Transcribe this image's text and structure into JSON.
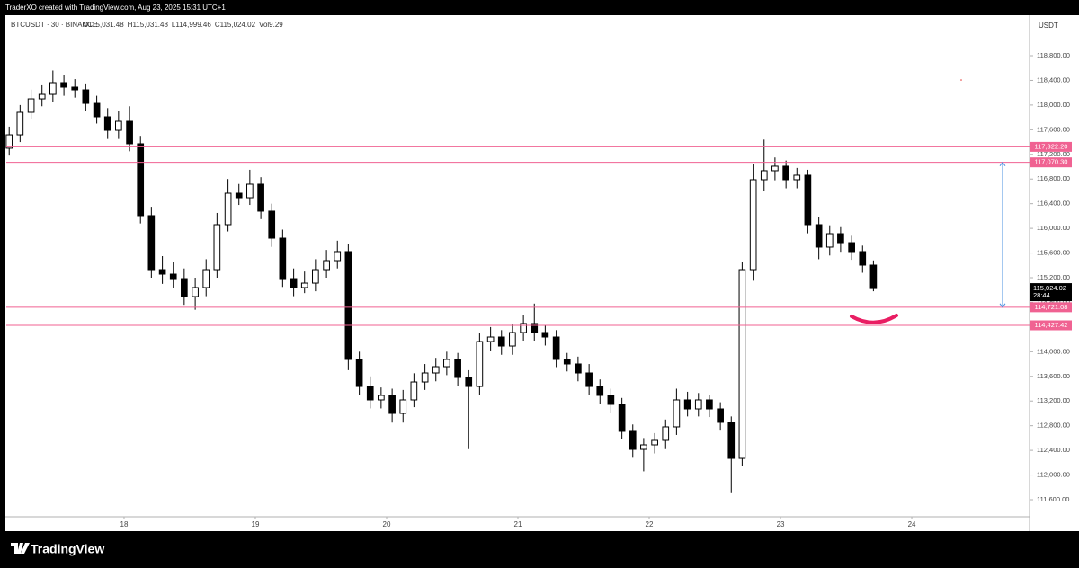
{
  "header": {
    "credit": "TraderXO created with TradingView.com, Aug 23, 2025 15:31 UTC+1"
  },
  "footer": {
    "brand": "TradingView"
  },
  "chart_data": {
    "type": "candlestick",
    "symbol": "BTCUSDT · 30 · BINANCE",
    "ohlc_legend": [
      "O115,031.48",
      "H115,031.48",
      "L114,999.46",
      "C115,024.02",
      "Vol9.29"
    ],
    "y_axis_label": "USDT",
    "up_color": "#ffffff",
    "down_color": "#000000",
    "x": [
      17.125,
      17.208,
      17.292,
      17.375,
      17.458,
      17.542,
      17.625,
      17.708,
      17.792,
      17.875,
      17.958,
      18.042,
      18.125,
      18.208,
      18.292,
      18.375,
      18.458,
      18.542,
      18.625,
      18.708,
      18.792,
      18.875,
      18.958,
      19.042,
      19.125,
      19.208,
      19.292,
      19.375,
      19.458,
      19.542,
      19.625,
      19.708,
      19.792,
      19.875,
      19.958,
      20.042,
      20.125,
      20.208,
      20.292,
      20.375,
      20.458,
      20.542,
      20.625,
      20.708,
      20.792,
      20.875,
      20.958,
      21.042,
      21.125,
      21.208,
      21.292,
      21.375,
      21.458,
      21.542,
      21.625,
      21.708,
      21.792,
      21.875,
      21.958,
      22.042,
      22.125,
      22.208,
      22.292,
      22.375,
      22.458,
      22.542,
      22.625,
      22.708,
      22.792,
      22.875,
      22.958,
      23.042,
      23.125,
      23.208,
      23.292,
      23.375,
      23.458,
      23.542,
      23.625,
      23.708
    ],
    "open": [
      117300,
      117517,
      117882,
      118100,
      118173,
      118363,
      118290,
      118246,
      118027,
      117809,
      117590,
      117736,
      117372,
      116206,
      115331,
      115258,
      115185,
      114894,
      115040,
      115331,
      116060,
      116570,
      116497,
      116716,
      116279,
      115841,
      115185,
      115040,
      115112,
      115331,
      115477,
      115623,
      113874,
      113436,
      113218,
      113291,
      112999,
      113218,
      113509,
      113655,
      113757,
      113874,
      113582,
      113436,
      114165,
      114238,
      114092,
      114311,
      114457,
      114311,
      114238,
      113874,
      113801,
      113655,
      113436,
      113291,
      113145,
      112708,
      112416,
      112489,
      112562,
      112781,
      113218,
      113072,
      113218,
      113072,
      112854,
      112270,
      115331,
      116789,
      116935,
      117008,
      116789,
      116862,
      116060,
      115696,
      115914,
      115768,
      115623,
      115404
    ],
    "high": [
      117650,
      118000,
      118250,
      118320,
      118560,
      118480,
      118420,
      118350,
      118150,
      117950,
      117900,
      117980,
      117500,
      116350,
      115550,
      115450,
      115350,
      115200,
      115500,
      116250,
      116800,
      116720,
      116950,
      116830,
      116400,
      115980,
      115350,
      115300,
      115500,
      115650,
      115800,
      115750,
      114000,
      113600,
      113420,
      113400,
      113380,
      113650,
      113800,
      113900,
      114000,
      113980,
      113700,
      114300,
      114400,
      114350,
      114450,
      114600,
      114780,
      114420,
      114350,
      113980,
      113920,
      113800,
      113550,
      113400,
      113250,
      112820,
      112600,
      112680,
      112900,
      113400,
      113350,
      113330,
      113300,
      113180,
      112950,
      115450,
      117050,
      117440,
      117150,
      117100,
      116980,
      116950,
      116180,
      116050,
      116020,
      115880,
      115720,
      115480
    ],
    "low": [
      117180,
      117400,
      117780,
      117980,
      118050,
      118150,
      118120,
      117900,
      117700,
      117450,
      117450,
      117250,
      116080,
      115200,
      115100,
      115040,
      114760,
      114680,
      114900,
      115200,
      115950,
      116380,
      116380,
      116150,
      115700,
      115050,
      114900,
      114950,
      114980,
      115200,
      115350,
      113700,
      113300,
      113080,
      113080,
      112850,
      112850,
      113100,
      113380,
      113520,
      113620,
      113450,
      112420,
      113300,
      114020,
      113950,
      113950,
      114180,
      114180,
      114100,
      113750,
      113680,
      113520,
      113300,
      113150,
      113000,
      112580,
      112280,
      112060,
      112350,
      112420,
      112650,
      112950,
      112950,
      112940,
      112720,
      111720,
      112150,
      115150,
      116600,
      116780,
      116650,
      116650,
      115920,
      115500,
      115560,
      115620,
      115490,
      115280,
      114980
    ],
    "close": [
      117517,
      117882,
      118100,
      118173,
      118363,
      118290,
      118246,
      118027,
      117809,
      117590,
      117736,
      117372,
      116206,
      115331,
      115258,
      115185,
      114894,
      115040,
      115331,
      116060,
      116570,
      116497,
      116716,
      116279,
      115841,
      115185,
      115040,
      115112,
      115331,
      115477,
      115623,
      113874,
      113436,
      113218,
      113291,
      112999,
      113218,
      113509,
      113655,
      113757,
      113874,
      113582,
      113436,
      114165,
      114238,
      114092,
      114311,
      114457,
      114311,
      114238,
      113874,
      113801,
      113655,
      113436,
      113291,
      113145,
      112708,
      112416,
      112489,
      112562,
      112781,
      113218,
      113072,
      113218,
      113072,
      112854,
      112270,
      115331,
      116789,
      116935,
      117008,
      116789,
      116862,
      116060,
      115696,
      115914,
      115768,
      115623,
      115404,
      115024.02
    ],
    "xlim": [
      17.103,
      24.897
    ],
    "xticks": [
      18,
      19,
      20,
      21,
      22,
      23,
      24
    ],
    "ylim": [
      111323,
      119456
    ],
    "yticks": [
      {
        "value": 111600,
        "label": "111,600.00"
      },
      {
        "value": 112000,
        "label": "112,000.00"
      },
      {
        "value": 112400,
        "label": "112,400.00"
      },
      {
        "value": 112800,
        "label": "112,800.00"
      },
      {
        "value": 113200,
        "label": "113,200.00"
      },
      {
        "value": 113600,
        "label": "113,600.00"
      },
      {
        "value": 114000,
        "label": "114,000.00"
      },
      {
        "value": 114400,
        "label": "114,400.00"
      },
      {
        "value": 114800,
        "label": "114,800.00"
      },
      {
        "value": 115200,
        "label": "115,200.00"
      },
      {
        "value": 115600,
        "label": "115,600.00"
      },
      {
        "value": 116000,
        "label": "116,000.00"
      },
      {
        "value": 116400,
        "label": "116,400.00"
      },
      {
        "value": 116800,
        "label": "116,800.00"
      },
      {
        "value": 117200,
        "label": "117,200.00"
      },
      {
        "value": 117600,
        "label": "117,600.00"
      },
      {
        "value": 118000,
        "label": "118,000.00"
      },
      {
        "value": 118400,
        "label": "118,400.00"
      },
      {
        "value": 118800,
        "label": "118,800.00"
      }
    ],
    "level_color": "#f06292",
    "levels": [
      {
        "value": 117322.2,
        "label": "117,322.20"
      },
      {
        "value": 117070.3,
        "label": "117,070.30"
      },
      {
        "value": 114721.08,
        "label": "114,721.08"
      },
      {
        "value": 114427.42,
        "label": "114,427.42"
      }
    ],
    "last_price": {
      "value": 115024.02,
      "label": "115,024.02",
      "countdown": "28:44"
    },
    "measure_color": "#4a90e2"
  }
}
